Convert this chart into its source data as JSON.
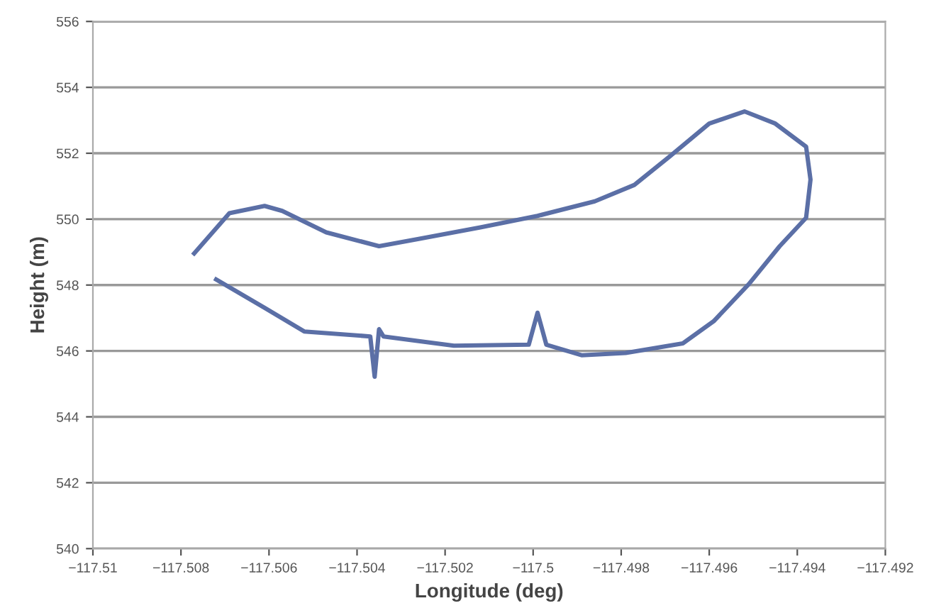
{
  "chart_data": {
    "type": "line",
    "xlabel": "Longitude (deg)",
    "ylabel": "Height (m)",
    "xlim": [
      -117.51,
      -117.492
    ],
    "xticks": [
      -117.51,
      -117.508,
      -117.506,
      -117.504,
      -117.502,
      -117.5,
      -117.498,
      -117.496,
      -117.494,
      -117.492
    ],
    "ylim": [
      540,
      556
    ],
    "yticks": [
      540,
      542,
      544,
      546,
      548,
      550,
      552,
      554,
      556
    ],
    "grid": "y",
    "legend": false,
    "marker": "none",
    "line_style": "solid",
    "series": [
      {
        "color": "#5b6fa6",
        "x": [
          -117.5077,
          -117.5069,
          -117.5061,
          -117.5057,
          -117.5047,
          -117.5035,
          -117.5026,
          -117.5012,
          -117.4999,
          -117.4986,
          -117.4977,
          -117.4969,
          -117.496,
          -117.4952,
          -117.4945,
          -117.4938,
          -117.4937,
          -117.4938,
          -117.4944,
          -117.4951,
          -117.4959,
          -117.4966,
          -117.4979,
          -117.4989,
          -117.4997,
          -117.4999,
          -117.5001,
          -117.5018,
          -117.5034,
          -117.5035,
          -117.5036,
          -117.5037,
          -117.5052,
          -117.5061,
          -117.5072
        ],
        "values": [
          548.96,
          550.18,
          550.4,
          550.25,
          549.6,
          549.18,
          549.4,
          549.75,
          550.1,
          550.54,
          551.04,
          551.9,
          552.9,
          553.27,
          552.9,
          552.2,
          551.2,
          550.04,
          549.18,
          548.03,
          546.9,
          546.23,
          545.94,
          545.87,
          546.19,
          547.16,
          546.19,
          546.16,
          546.44,
          546.66,
          545.22,
          546.44,
          546.59,
          547.31,
          548.17
        ]
      }
    ]
  }
}
